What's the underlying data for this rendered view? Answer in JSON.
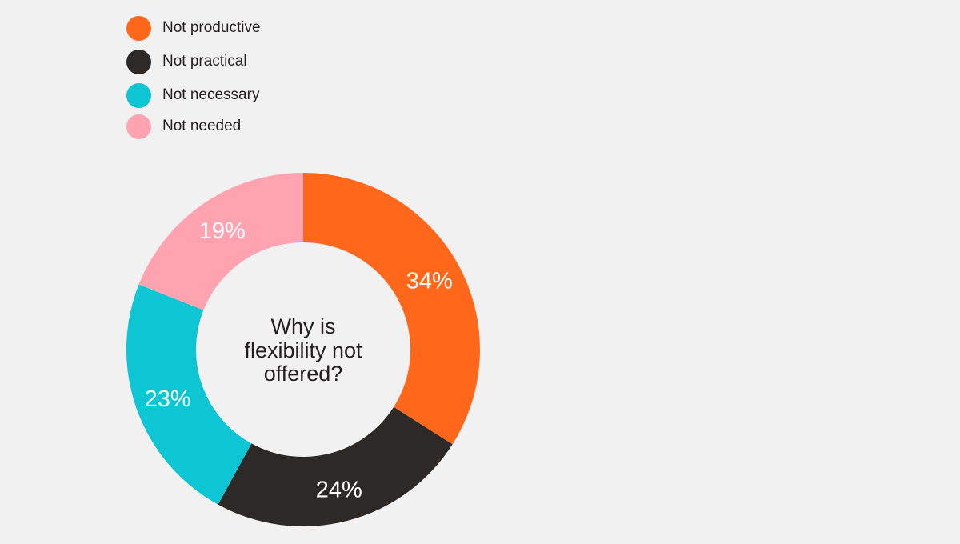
{
  "chart_data": {
    "type": "pie",
    "donut": true,
    "title": "",
    "center_text": [
      "Why is",
      "flexibility not",
      "offered?"
    ],
    "categories": [
      "Not productive",
      "Not practical",
      "Not necessary",
      "Not needed"
    ],
    "values": [
      34,
      24,
      23,
      19
    ],
    "value_labels": [
      "34%",
      "24%",
      "23%",
      "19%"
    ],
    "colors": [
      "#ff671b",
      "#2d2926",
      "#0dc5d3",
      "#ffa3b1"
    ],
    "label_color": "#ffffff",
    "legend_placement": "top-left",
    "start": "top, clockwise",
    "grid": false
  }
}
